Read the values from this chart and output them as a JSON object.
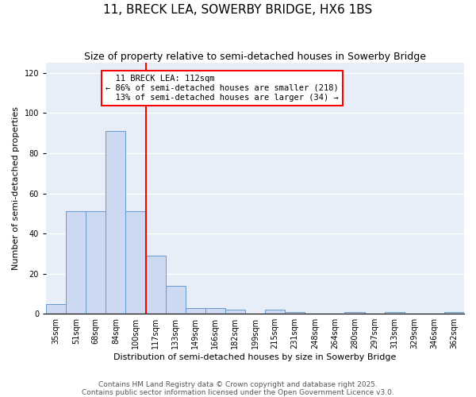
{
  "title": "11, BRECK LEA, SOWERBY BRIDGE, HX6 1BS",
  "subtitle": "Size of property relative to semi-detached houses in Sowerby Bridge",
  "xlabel": "Distribution of semi-detached houses by size in Sowerby Bridge",
  "ylabel": "Number of semi-detached properties",
  "bins": [
    "35sqm",
    "51sqm",
    "68sqm",
    "84sqm",
    "100sqm",
    "117sqm",
    "133sqm",
    "149sqm",
    "166sqm",
    "182sqm",
    "199sqm",
    "215sqm",
    "231sqm",
    "248sqm",
    "264sqm",
    "280sqm",
    "297sqm",
    "313sqm",
    "329sqm",
    "346sqm",
    "362sqm"
  ],
  "bar_heights": [
    5,
    51,
    51,
    91,
    51,
    29,
    14,
    3,
    3,
    2,
    0,
    2,
    1,
    0,
    0,
    1,
    0,
    1,
    0,
    0,
    1
  ],
  "bar_color": "#ccd9f0",
  "bar_edge_color": "#6699cc",
  "property_label": "11 BRECK LEA: 112sqm",
  "pct_smaller": 86,
  "count_smaller": 218,
  "pct_larger": 13,
  "count_larger": 34,
  "vline_color": "red",
  "ylim": [
    0,
    125
  ],
  "yticks": [
    0,
    20,
    40,
    60,
    80,
    100,
    120
  ],
  "background_color": "#e8eef8",
  "footer_line1": "Contains HM Land Registry data © Crown copyright and database right 2025.",
  "footer_line2": "Contains public sector information licensed under the Open Government Licence v3.0.",
  "title_fontsize": 11,
  "subtitle_fontsize": 9,
  "xlabel_fontsize": 8,
  "ylabel_fontsize": 8,
  "tick_fontsize": 7,
  "annot_fontsize": 7.5,
  "footer_fontsize": 6.5
}
